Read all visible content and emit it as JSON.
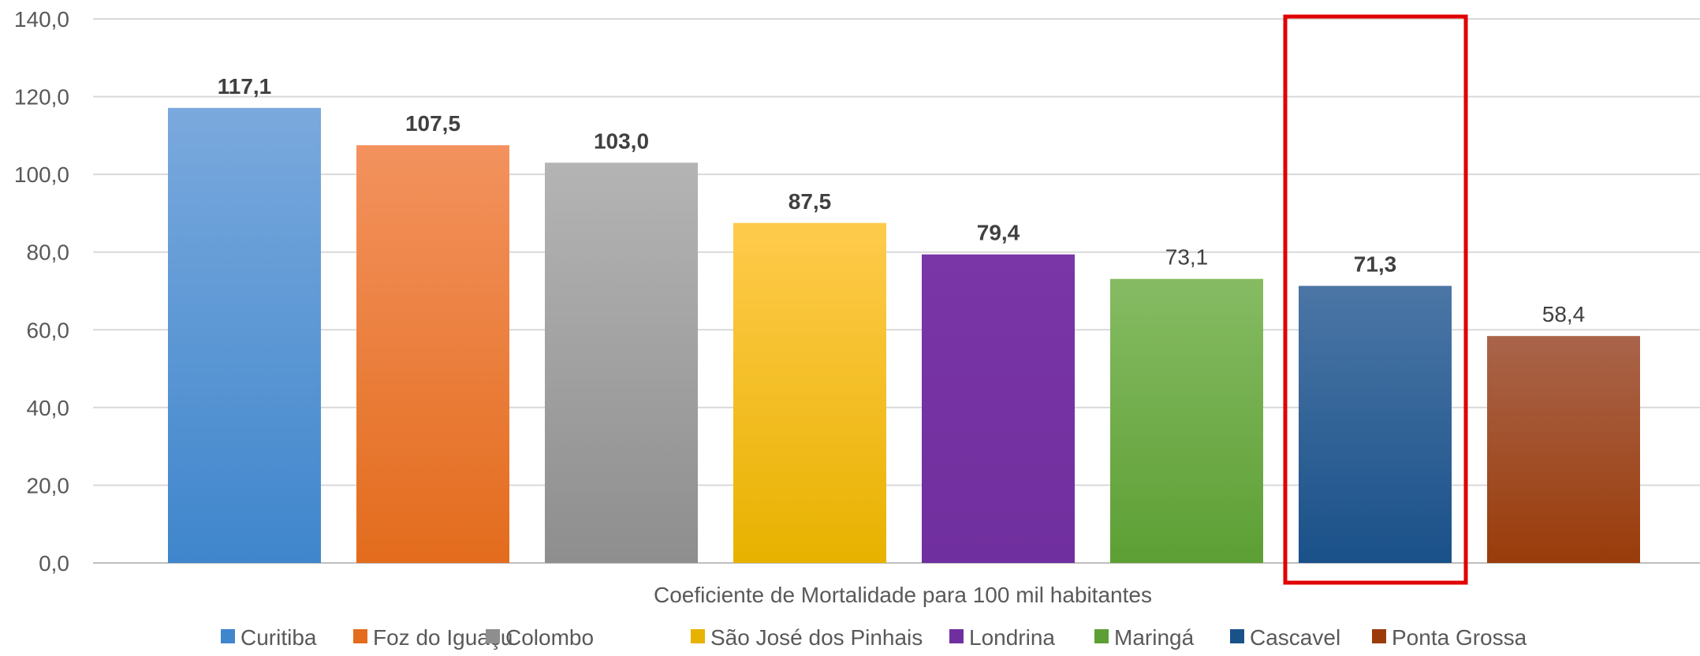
{
  "chart_data": {
    "type": "bar",
    "title": "",
    "xlabel": "Coeficiente de Mortalidade para 100 mil habitantes",
    "ylabel": "",
    "ylim": [
      0,
      140
    ],
    "yticks": [
      "0,0",
      "20,0",
      "40,0",
      "60,0",
      "80,0",
      "100,0",
      "120,0",
      "140,0"
    ],
    "grid": true,
    "legend_position": "bottom",
    "categories": [
      "Curitiba",
      "Foz do Iguaçu",
      "Colombo",
      "São José dos Pinhais",
      "Londrina",
      "Maringá",
      "Cascavel",
      "Ponta Grossa"
    ],
    "values": [
      117.1,
      107.5,
      103.0,
      87.5,
      79.4,
      73.1,
      71.3,
      58.4
    ],
    "data_labels": [
      "117,1",
      "107,5",
      "103,0",
      "87,5",
      "79,4",
      "73,1",
      "71,3",
      "58,4"
    ],
    "label_bold": [
      true,
      true,
      true,
      true,
      true,
      false,
      true,
      false
    ],
    "colors": [
      [
        "#7aa9dd",
        "#3f86cc"
      ],
      [
        "#f3925e",
        "#e36c1d"
      ],
      [
        "#b4b4b4",
        "#8e8e8e"
      ],
      [
        "#ffcb4c",
        "#e8b200"
      ],
      [
        "#7a35a6",
        "#702f9e"
      ],
      [
        "#86bb63",
        "#5d9f34"
      ],
      [
        "#4b76a6",
        "#1a5189"
      ],
      [
        "#a9644a",
        "#9a3c0a"
      ]
    ],
    "highlight_category": "Cascavel",
    "highlight_color": "#e00000"
  }
}
